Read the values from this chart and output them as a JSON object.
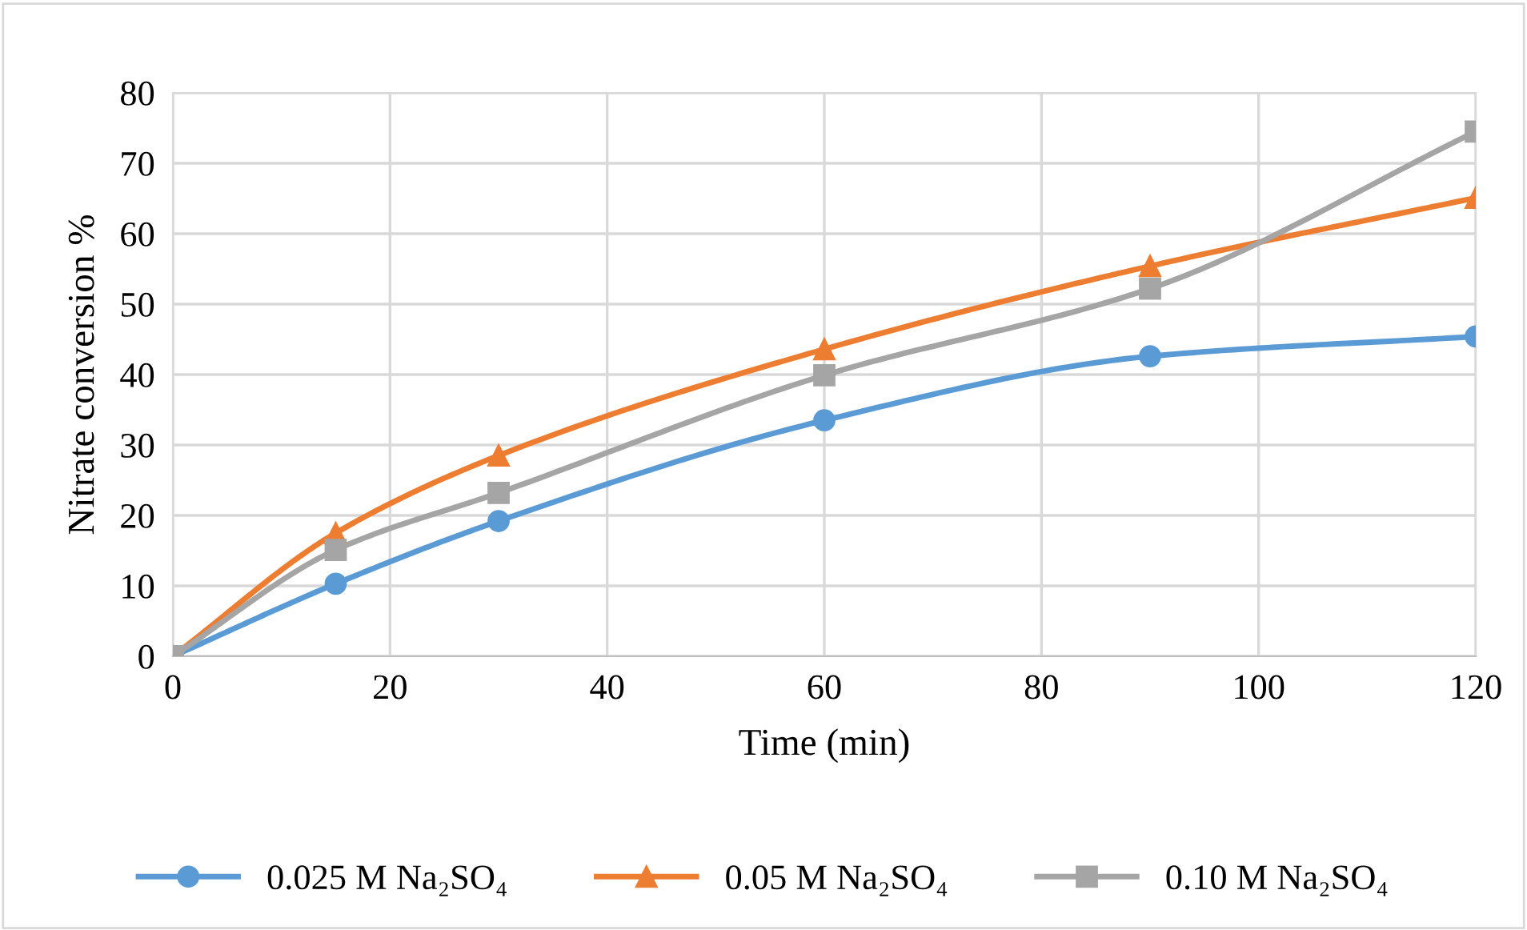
{
  "chart_data": {
    "type": "line",
    "xlabel": "Time (min)",
    "ylabel": "Nitrate conversion %",
    "x": [
      0,
      15,
      30,
      60,
      90,
      120
    ],
    "series": [
      {
        "name": "0.025 M Na₂SO₄",
        "color": "#5b9bd5",
        "marker": "circle",
        "values": [
          0,
          10.3,
          19.2,
          33.5,
          42.6,
          45.4
        ]
      },
      {
        "name": "0.05 M Na₂SO₄",
        "color": "#ed7d31",
        "marker": "triangle",
        "values": [
          0,
          17.5,
          28.5,
          43.6,
          55.4,
          65.1
        ]
      },
      {
        "name": "0.10 M Na₂SO₄",
        "color": "#a5a5a5",
        "marker": "square",
        "values": [
          0,
          15.1,
          23.2,
          39.9,
          52.2,
          74.5
        ]
      }
    ],
    "xlim": [
      0,
      120
    ],
    "xticks": [
      0,
      20,
      40,
      60,
      80,
      100,
      120
    ],
    "ylim": [
      0,
      80
    ],
    "yticks": [
      0,
      10,
      20,
      30,
      40,
      50,
      60,
      70,
      80
    ],
    "grid": true,
    "legend": "bottom",
    "line_style": "solid"
  }
}
